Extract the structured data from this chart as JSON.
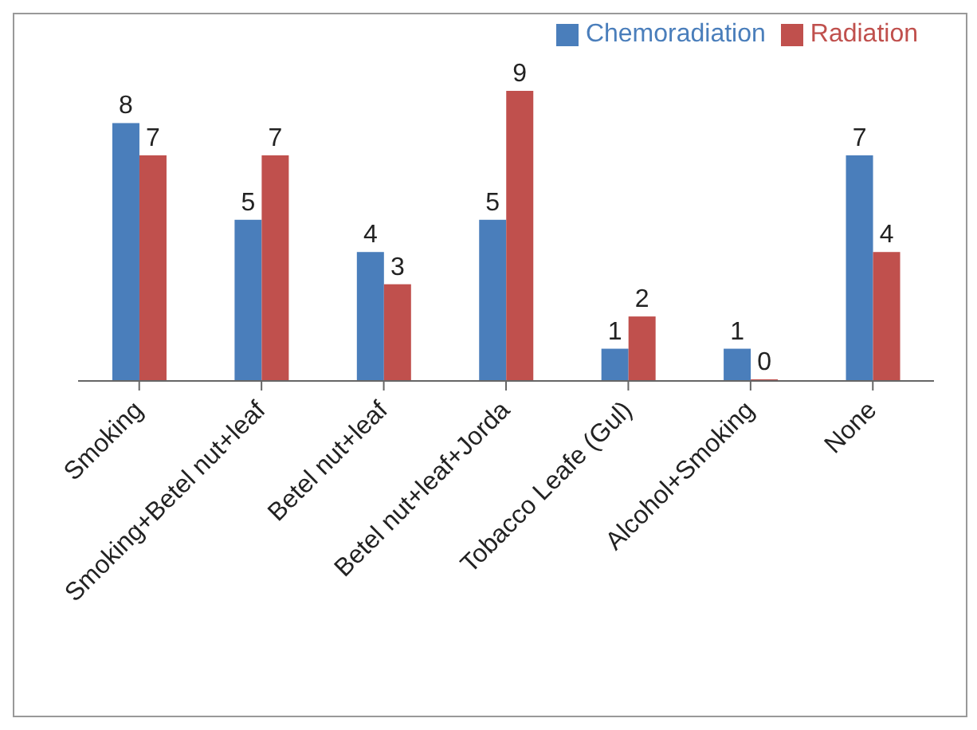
{
  "chart_data": {
    "type": "bar",
    "categories": [
      "Smoking",
      "Smoking+Betel nut+leaf",
      "Betel nut+leaf",
      "Betel nut+leaf+Jorda",
      "Tobacco Leafe (Gul)",
      "Alcohol+Smoking",
      "None"
    ],
    "series": [
      {
        "name": "Chemoradiation",
        "color": "#4a7ebb",
        "values": [
          8,
          5,
          4,
          5,
          1,
          1,
          7
        ]
      },
      {
        "name": "Radiation",
        "color": "#c0504d",
        "values": [
          7,
          7,
          3,
          9,
          2,
          0,
          4
        ]
      }
    ],
    "data_labels": true,
    "legend": "top right",
    "grid": false
  }
}
